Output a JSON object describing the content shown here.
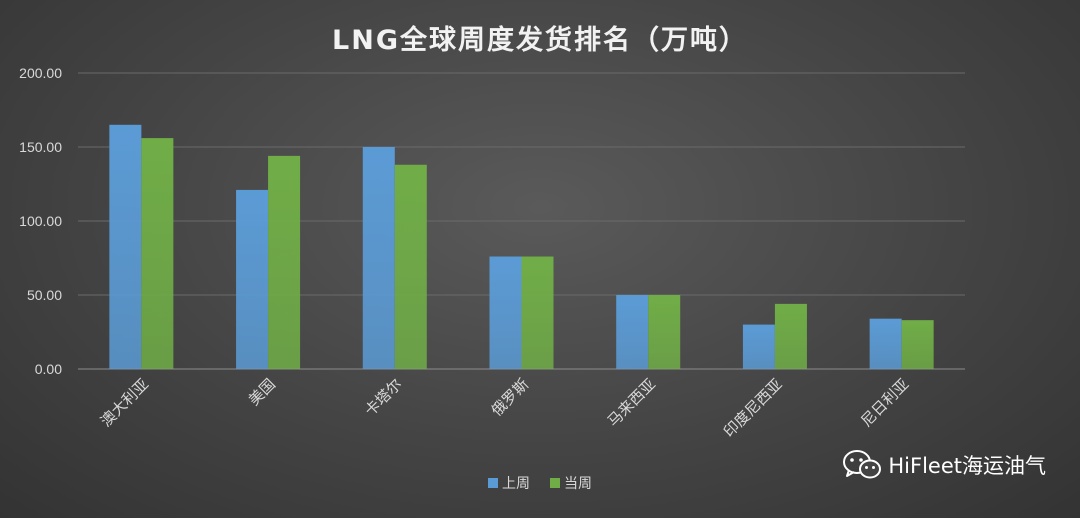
{
  "chart_data": {
    "type": "bar",
    "title": "LNG全球周度发货排名（万吨）",
    "categories": [
      "澳大利亚",
      "美国",
      "卡塔尔",
      "俄罗斯",
      "马来西亚",
      "印度尼西亚",
      "尼日利亚"
    ],
    "series": [
      {
        "name": "上周",
        "color": "#5b9bd5",
        "values": [
          165,
          121,
          150,
          76,
          50,
          30,
          34
        ]
      },
      {
        "name": "当周",
        "color": "#70ad47",
        "values": [
          156,
          144,
          138,
          76,
          50,
          44,
          33
        ]
      }
    ],
    "yticks": [
      "0.00",
      "50.00",
      "100.00",
      "150.00",
      "200.00"
    ],
    "ylim": [
      0,
      200
    ],
    "grid": true,
    "legend_position": "bottom"
  },
  "watermark": {
    "text": "HiFleet海运油气",
    "icon": "wechat-icon"
  }
}
